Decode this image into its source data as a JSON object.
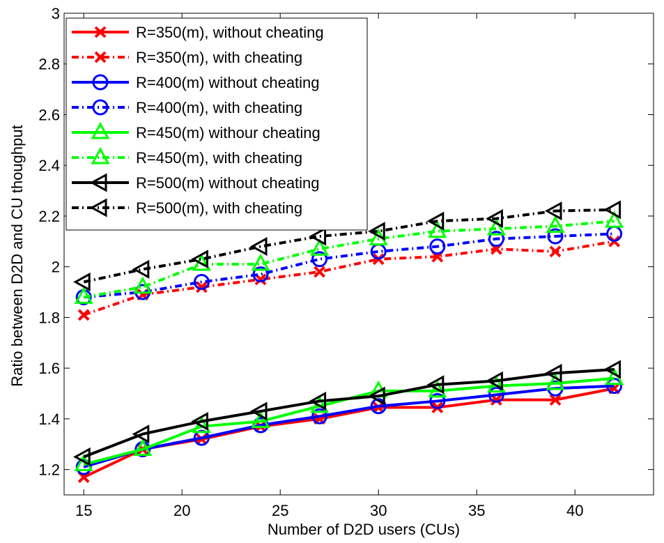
{
  "chart_data": {
    "type": "line",
    "title": "",
    "xlabel": "Number of D2D users (CUs)",
    "ylabel": "Ratio between D2D and CU thoughput",
    "xlim": [
      14,
      44
    ],
    "ylim": [
      1.1,
      3.0
    ],
    "xticks": [
      15,
      20,
      25,
      30,
      35,
      40
    ],
    "yticks": [
      1.2,
      1.4,
      1.6,
      1.8,
      2,
      2.2,
      2.4,
      2.6,
      2.8,
      3
    ],
    "grid": false,
    "legend_position": "top-left",
    "x": [
      15,
      18,
      21,
      24,
      27,
      30,
      33,
      36,
      39,
      42
    ],
    "series": [
      {
        "name": "R=350(m), without cheating",
        "color": "#ff0000",
        "dash": "solid",
        "marker": "x",
        "values": [
          1.17,
          1.28,
          1.32,
          1.37,
          1.4,
          1.445,
          1.445,
          1.475,
          1.475,
          1.52
        ]
      },
      {
        "name": "R=350(m), with cheating",
        "color": "#ff0000",
        "dash": "dashdot",
        "marker": "x",
        "values": [
          1.81,
          1.89,
          1.92,
          1.95,
          1.98,
          2.03,
          2.04,
          2.07,
          2.06,
          2.1
        ]
      },
      {
        "name": "R=400(m) without cheating",
        "color": "#0000ff",
        "dash": "solid",
        "marker": "circle",
        "values": [
          1.21,
          1.28,
          1.325,
          1.375,
          1.41,
          1.45,
          1.47,
          1.495,
          1.52,
          1.53
        ]
      },
      {
        "name": "R=400(m), with cheating",
        "color": "#0000ff",
        "dash": "dashdot",
        "marker": "circle",
        "values": [
          1.88,
          1.9,
          1.94,
          1.97,
          2.03,
          2.06,
          2.08,
          2.11,
          2.12,
          2.13
        ]
      },
      {
        "name": "R=450(m) withour cheating",
        "color": "#00ff00",
        "dash": "solid",
        "marker": "triangle-up",
        "values": [
          1.22,
          1.28,
          1.37,
          1.39,
          1.45,
          1.51,
          1.51,
          1.53,
          1.54,
          1.56
        ]
      },
      {
        "name": "R=450(m), with cheating",
        "color": "#00ff00",
        "dash": "dashdot",
        "marker": "triangle-up",
        "values": [
          1.88,
          1.92,
          2.01,
          2.01,
          2.07,
          2.11,
          2.14,
          2.15,
          2.16,
          2.18
        ]
      },
      {
        "name": "R=500(m) without cheating",
        "color": "#000000",
        "dash": "solid",
        "marker": "triangle-left",
        "values": [
          1.25,
          1.34,
          1.39,
          1.43,
          1.47,
          1.49,
          1.535,
          1.55,
          1.58,
          1.595
        ]
      },
      {
        "name": "R=500(m), with cheating",
        "color": "#000000",
        "dash": "dashdot",
        "marker": "triangle-left",
        "values": [
          1.94,
          1.99,
          2.03,
          2.08,
          2.12,
          2.14,
          2.18,
          2.19,
          2.22,
          2.225
        ]
      }
    ]
  }
}
